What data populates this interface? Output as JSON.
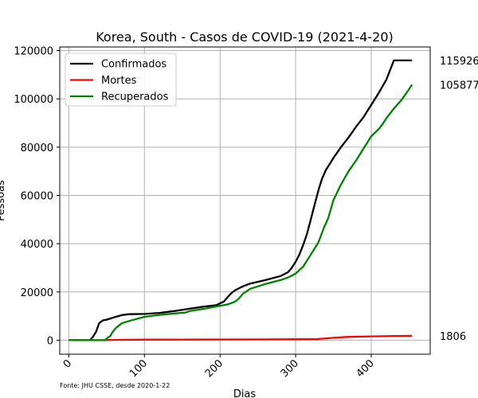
{
  "chart_data": {
    "type": "line",
    "title": "Korea, South - Casos de COVID-19 (2021-4-20)",
    "xlabel": "Dias",
    "ylabel": "Pessoas",
    "xlim": [
      -12,
      478
    ],
    "ylim": [
      -5800,
      121500
    ],
    "xticks": [
      0,
      100,
      200,
      300,
      400
    ],
    "yticks": [
      0,
      20000,
      40000,
      60000,
      80000,
      100000,
      120000
    ],
    "grid": true,
    "legend_position": "top-left",
    "source": "Fonte: JHU CSSE, desde 2020-1-22",
    "series": [
      {
        "name": "Confirmados",
        "color": "#000000",
        "end_label": "115926",
        "x": [
          0,
          28,
          32,
          36,
          40,
          45,
          50,
          60,
          70,
          80,
          100,
          120,
          140,
          160,
          180,
          195,
          205,
          210,
          215,
          220,
          230,
          240,
          260,
          280,
          290,
          295,
          300,
          305,
          310,
          315,
          320,
          325,
          330,
          335,
          340,
          345,
          350,
          360,
          370,
          380,
          390,
          395,
          400,
          410,
          420,
          430,
          440,
          445,
          450,
          454
        ],
        "y": [
          0,
          0,
          1500,
          3500,
          7000,
          8200,
          8500,
          9500,
          10400,
          10800,
          10900,
          11300,
          12100,
          13100,
          14000,
          14500,
          16000,
          17800,
          19500,
          20700,
          22300,
          23500,
          24900,
          26600,
          28200,
          30000,
          32500,
          35500,
          39500,
          44000,
          50000,
          56000,
          62000,
          67000,
          70500,
          73000,
          75500,
          80000,
          84000,
          88500,
          92500,
          95000,
          97500,
          102500,
          108000,
          115926,
          115926,
          115926,
          115926,
          115926
        ]
      },
      {
        "name": "Mortes",
        "color": "#ff0000",
        "end_label": "1806",
        "x": [
          0,
          40,
          60,
          100,
          150,
          200,
          250,
          300,
          330,
          350,
          370,
          400,
          430,
          454
        ],
        "y": [
          0,
          0,
          150,
          250,
          280,
          300,
          320,
          400,
          500,
          1000,
          1400,
          1600,
          1750,
          1806
        ]
      },
      {
        "name": "Recuperados",
        "color": "#008000",
        "end_label": "105877",
        "x": [
          0,
          48,
          52,
          55,
          57,
          62,
          70,
          80,
          100,
          120,
          140,
          155,
          160,
          180,
          200,
          210,
          220,
          225,
          230,
          240,
          260,
          280,
          290,
          300,
          310,
          320,
          330,
          338,
          343,
          350,
          360,
          370,
          380,
          390,
          395,
          400,
          410,
          415,
          420,
          430,
          440,
          450,
          454
        ],
        "y": [
          0,
          0,
          1200,
          1800,
          3000,
          5000,
          7000,
          8000,
          9700,
          10500,
          11100,
          11500,
          12100,
          13100,
          14300,
          14800,
          16000,
          17300,
          19200,
          21300,
          23300,
          24900,
          26000,
          27600,
          30500,
          35500,
          40500,
          47000,
          50500,
          58000,
          64500,
          70000,
          74500,
          79500,
          82000,
          84500,
          87500,
          89500,
          92000,
          96000,
          99500,
          104000,
          105877
        ]
      }
    ]
  }
}
